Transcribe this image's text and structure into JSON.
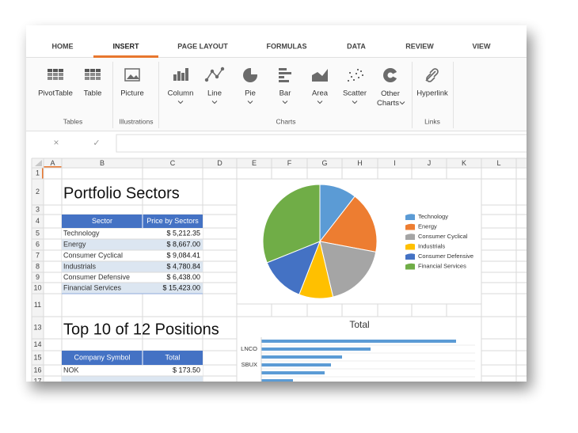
{
  "tabs": [
    "HOME",
    "INSERT",
    "PAGE LAYOUT",
    "FORMULAS",
    "DATA",
    "REVIEW",
    "VIEW"
  ],
  "active_tab": 1,
  "ribbon": {
    "groups": [
      {
        "label": "Tables",
        "buttons": [
          "PivotTable",
          "Table"
        ]
      },
      {
        "label": "Illustrations",
        "buttons": [
          "Picture"
        ]
      },
      {
        "label": "Charts",
        "buttons": [
          "Column",
          "Line",
          "Pie",
          "Bar",
          "Area",
          "Scatter",
          "Other Charts"
        ]
      },
      {
        "label": "Links",
        "buttons": [
          "Hyperlink"
        ]
      }
    ]
  },
  "formula_bar": {
    "cancel": "×",
    "confirm": "✓"
  },
  "columns": [
    "A",
    "B",
    "C",
    "D",
    "E",
    "F",
    "G",
    "H",
    "I",
    "J",
    "K",
    "L"
  ],
  "rows": [
    1,
    2,
    3,
    4,
    5,
    6,
    7,
    8,
    9,
    10,
    11,
    13,
    14,
    15,
    16,
    17
  ],
  "sheet": {
    "title1": "Portfolio Sectors",
    "sectors_table": {
      "header": [
        "Sector",
        "Price by Sectors"
      ],
      "rows": [
        [
          "Technology",
          "$ 5,212.35"
        ],
        [
          "Energy",
          "$ 8,667.00"
        ],
        [
          "Consumer Cyclical",
          "$ 9,084.41"
        ],
        [
          "Industrials",
          "$ 4,780.84"
        ],
        [
          "Consumer Defensive",
          "$ 6,438.00"
        ],
        [
          "Financial Services",
          "$ 15,423.00"
        ]
      ]
    },
    "title2": "Top 10 of 12 Positions",
    "positions_table": {
      "header": [
        "Company Symbol",
        "Total"
      ],
      "rows": [
        [
          "NOK",
          "$ 173.50"
        ]
      ]
    }
  },
  "charts": [
    {
      "type": "pie",
      "categories": [
        "Technology",
        "Energy",
        "Consumer Cyclical",
        "Industrials",
        "Consumer Defensive",
        "Financial Services"
      ],
      "values": [
        5212.35,
        8667.0,
        9084.41,
        4780.84,
        6438.0,
        15423.0
      ],
      "colors": [
        "#5b9bd5",
        "#ed7d31",
        "#a5a5a5",
        "#ffc000",
        "#4472c4",
        "#70ad47"
      ]
    },
    {
      "type": "bar",
      "title": "Total",
      "categories": [
        null,
        "LNCO",
        null,
        "SBUX",
        null,
        null
      ],
      "values": [
        1230,
        690,
        510,
        440,
        400,
        200
      ],
      "color": "#5b9bd5"
    }
  ]
}
